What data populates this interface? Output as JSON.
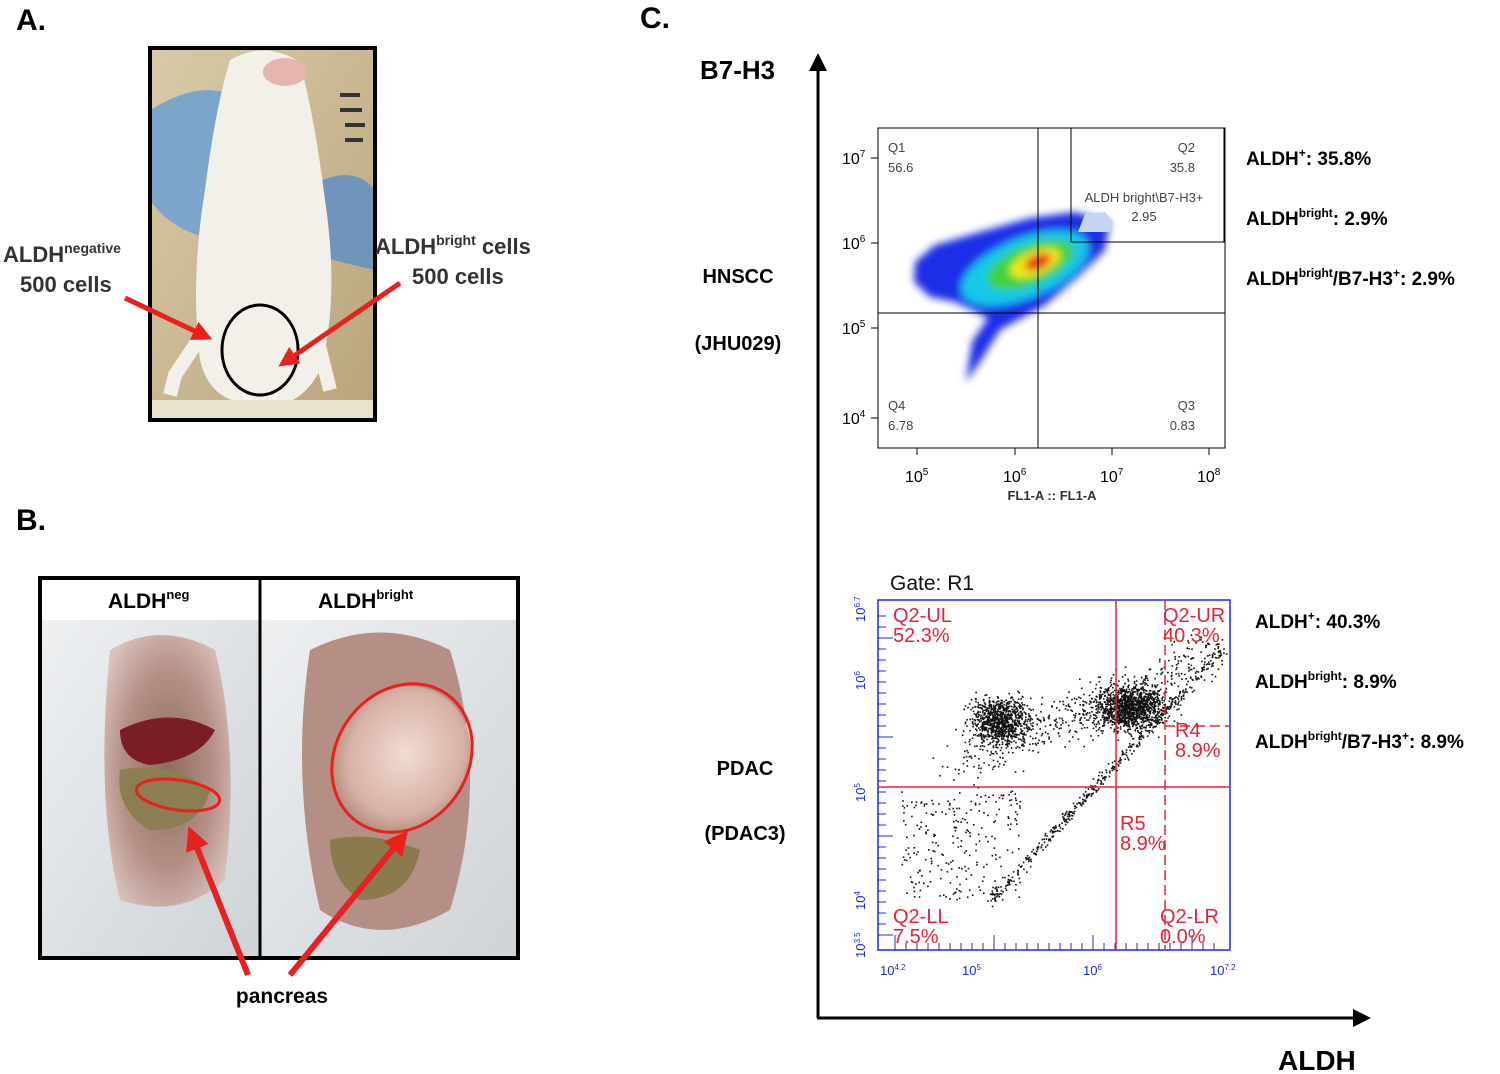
{
  "panel_a": {
    "label": "A.",
    "left_annotation": {
      "base": "ALDH",
      "sup": "negative",
      "line2": "500 cells"
    },
    "right_annotation": {
      "base": "ALDH",
      "sup": "bright",
      "rest": " cells",
      "line2": "500 cells"
    }
  },
  "panel_b": {
    "label": "B.",
    "columns": [
      {
        "base": "ALDH",
        "sup": "neg"
      },
      {
        "base": "ALDH",
        "sup": "bright"
      }
    ],
    "annotation": "pancreas"
  },
  "panel_c": {
    "label": "C.",
    "y_axis": "B7-H3",
    "x_axis": "ALDH",
    "rows": [
      {
        "name": "HNSCC",
        "sample": "(JHU029)",
        "stats": [
          {
            "base": "ALDH",
            "sup": "+",
            "rest": ": 35.8%"
          },
          {
            "base": "ALDH",
            "sup": "bright",
            "rest": ": 2.9%"
          },
          {
            "base": "ALDH",
            "sup": "bright",
            "mid": "/B7-H3",
            "sup2": "+",
            "rest": ": 2.9%"
          }
        ]
      },
      {
        "name": "PDAC",
        "sample": "(PDAC3)",
        "stats": [
          {
            "base": "ALDH",
            "sup": "+",
            "rest": ": 40.3%"
          },
          {
            "base": "ALDH",
            "sup": "bright",
            "rest": ": 8.9%"
          },
          {
            "base": "ALDH",
            "sup": "bright",
            "mid": "/B7-H3",
            "sup2": "+",
            "rest": ": 8.9%"
          }
        ]
      }
    ],
    "hnscc_plot": {
      "quadrants": [
        {
          "name": "Q1",
          "value": "56.6"
        },
        {
          "name": "Q2",
          "value": "35.8"
        },
        {
          "name": "Q4",
          "value": "6.78"
        },
        {
          "name": "Q3",
          "value": "0.83"
        }
      ],
      "gate": {
        "name": "ALDH bright\\B7-H3+",
        "value": "2.95"
      },
      "xticks": [
        {
          "base": "10",
          "exp": "5"
        },
        {
          "base": "10",
          "exp": "6"
        },
        {
          "base": "10",
          "exp": "7"
        },
        {
          "base": "10",
          "exp": "8"
        }
      ],
      "yticks": [
        {
          "base": "10",
          "exp": "7"
        },
        {
          "base": "10",
          "exp": "6"
        },
        {
          "base": "10",
          "exp": "5"
        },
        {
          "base": "10",
          "exp": "4"
        }
      ],
      "x_label": "FL1-A :: FL1-A"
    },
    "pdac_plot": {
      "gate_label": "Gate: R1",
      "regions": [
        {
          "name": "Q2-UL",
          "value": "52.3%"
        },
        {
          "name": "Q2-UR",
          "value": "40.3%"
        },
        {
          "name": "R4",
          "value": "8.9%"
        },
        {
          "name": "R5",
          "value": "8.9%"
        },
        {
          "name": "Q2-LL",
          "value": "7.5%"
        },
        {
          "name": "Q2-LR",
          "value": "0.0%"
        }
      ],
      "xticks": [
        {
          "base": "10",
          "exp": "4.2"
        },
        {
          "base": "10",
          "exp": "5"
        },
        {
          "base": "10",
          "exp": "6"
        },
        {
          "base": "10",
          "exp": "7.2"
        }
      ],
      "yticks": [
        {
          "base": "10",
          "exp": "6.7"
        },
        {
          "base": "10",
          "exp": "6"
        },
        {
          "base": "10",
          "exp": "5"
        },
        {
          "base": "10",
          "exp": "4"
        },
        {
          "base": "10",
          "exp": "3.5"
        }
      ]
    }
  }
}
